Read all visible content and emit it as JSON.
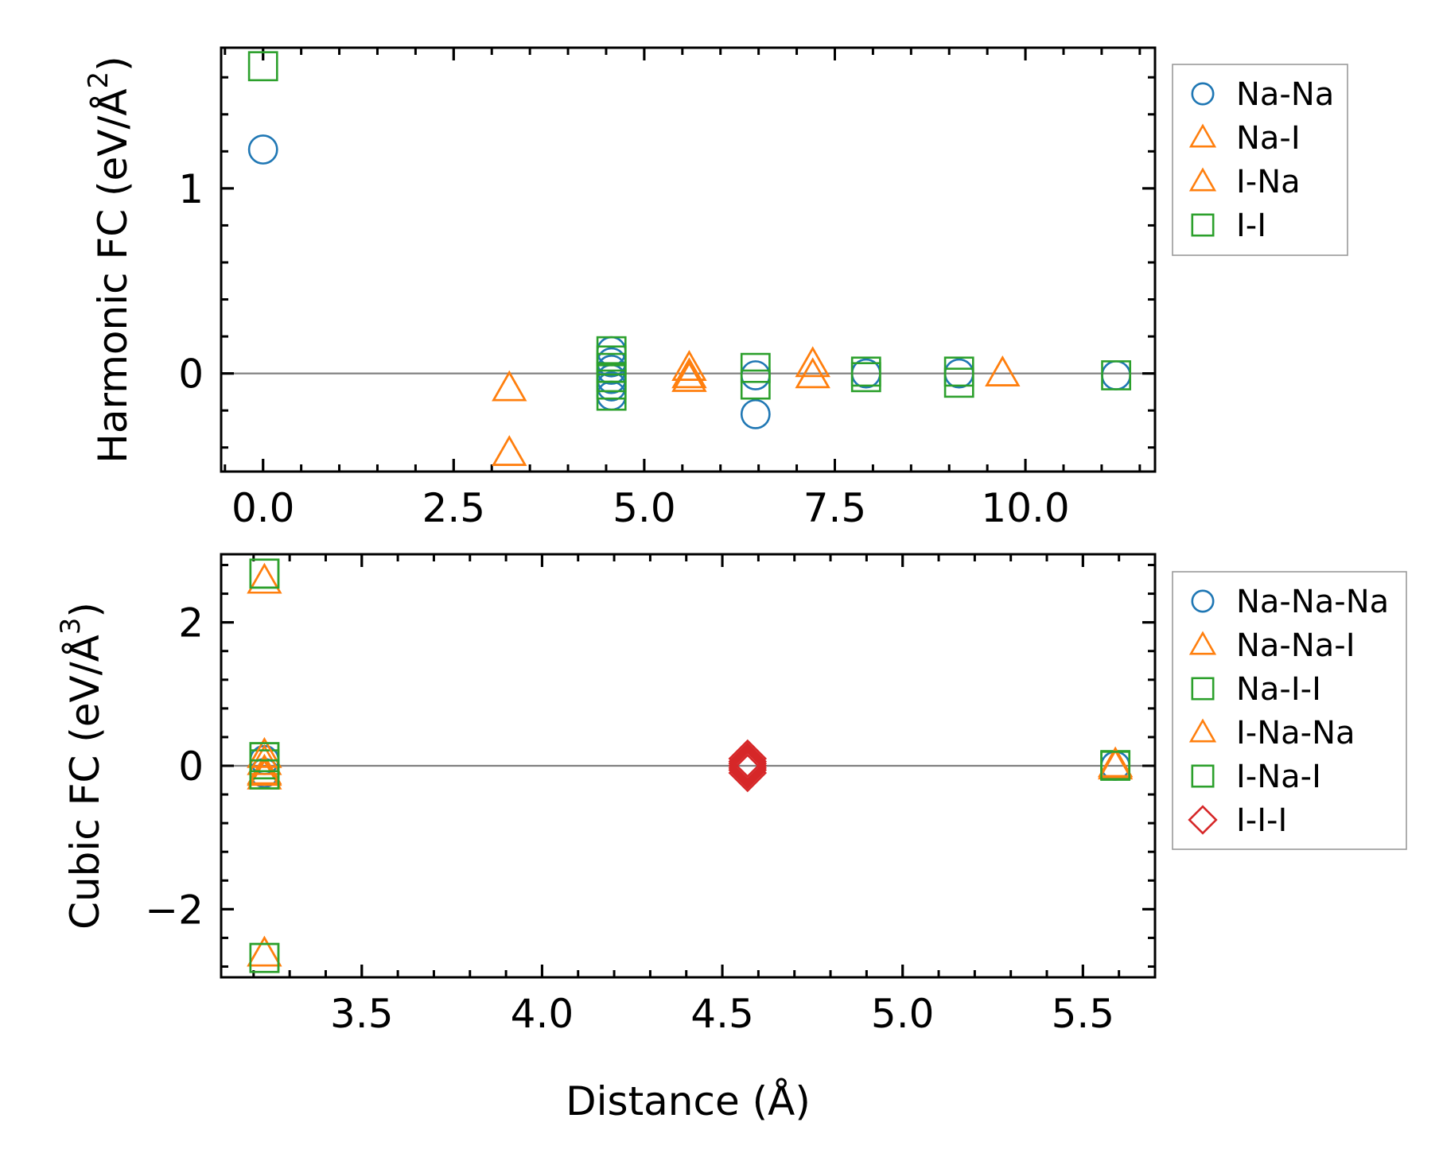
{
  "colors": {
    "blue": "#1f77b4",
    "orange": "#ff7f0e",
    "green": "#2ca02c",
    "red": "#d62728",
    "zero_line": "#808080"
  },
  "chart_data": [
    {
      "type": "scatter",
      "id": "harmonic",
      "ylabel": "Harmonic FC (eV/Å²)",
      "ylabel_parts": [
        "Harmonic FC (eV/Å",
        "2",
        ")"
      ],
      "xlabel": "",
      "xlim": [
        -0.55,
        11.7
      ],
      "ylim": [
        -0.53,
        1.76
      ],
      "xticks": [
        0.0,
        2.5,
        5.0,
        7.5,
        10.0
      ],
      "xtick_labels": [
        "0.0",
        "2.5",
        "5.0",
        "7.5",
        "10.0"
      ],
      "yticks": [
        0,
        1
      ],
      "ytick_labels": [
        "0",
        "1"
      ],
      "x_minor_step": 0.5,
      "y_minor_step": 0.2,
      "zero_line": true,
      "legend_position": "outside-right-top",
      "series": [
        {
          "name": "Na-Na",
          "marker": "circle",
          "color": "#1f77b4",
          "points": [
            [
              0.0,
              1.21
            ],
            [
              4.57,
              0.12
            ],
            [
              4.57,
              0.06
            ],
            [
              4.57,
              0.02
            ],
            [
              4.57,
              -0.03
            ],
            [
              4.57,
              -0.07
            ],
            [
              4.57,
              -0.12
            ],
            [
              6.46,
              -0.01
            ],
            [
              6.46,
              -0.22
            ],
            [
              7.91,
              0.0
            ],
            [
              9.13,
              0.0
            ],
            [
              11.19,
              -0.01
            ]
          ]
        },
        {
          "name": "Na-I",
          "marker": "triangle",
          "color": "#ff7f0e",
          "points": [
            [
              3.23,
              -0.08
            ],
            [
              3.23,
              -0.43
            ],
            [
              5.59,
              0.03
            ],
            [
              5.59,
              -0.01
            ],
            [
              5.59,
              -0.03
            ],
            [
              7.21,
              0.05
            ],
            [
              7.21,
              -0.01
            ],
            [
              9.7,
              0.0
            ]
          ]
        },
        {
          "name": "I-Na",
          "marker": "triangle",
          "color": "#ff7f0e",
          "points": [
            [
              3.23,
              -0.08
            ],
            [
              3.23,
              -0.43
            ],
            [
              5.59,
              0.03
            ],
            [
              5.59,
              -0.01
            ],
            [
              5.59,
              -0.03
            ],
            [
              7.21,
              0.05
            ],
            [
              7.21,
              -0.01
            ],
            [
              9.7,
              0.0
            ]
          ]
        },
        {
          "name": "I-I",
          "marker": "square",
          "color": "#2ca02c",
          "points": [
            [
              0.0,
              1.66
            ],
            [
              4.57,
              0.12
            ],
            [
              4.57,
              0.07
            ],
            [
              4.57,
              0.03
            ],
            [
              4.57,
              -0.02
            ],
            [
              4.57,
              -0.06
            ],
            [
              4.57,
              -0.12
            ],
            [
              6.46,
              0.03
            ],
            [
              6.46,
              -0.06
            ],
            [
              7.91,
              0.01
            ],
            [
              7.91,
              -0.02
            ],
            [
              9.13,
              0.01
            ],
            [
              9.13,
              -0.05
            ],
            [
              11.19,
              -0.01
            ]
          ]
        }
      ]
    },
    {
      "type": "scatter",
      "id": "cubic",
      "ylabel": "Cubic FC (eV/Å³)",
      "ylabel_parts": [
        "Cubic FC (eV/Å",
        "3",
        ")"
      ],
      "xlabel": "Distance (Å)",
      "xlim": [
        3.11,
        5.7
      ],
      "ylim": [
        -2.95,
        2.95
      ],
      "xticks": [
        3.5,
        4.0,
        4.5,
        5.0,
        5.5
      ],
      "xtick_labels": [
        "3.5",
        "4.0",
        "4.5",
        "5.0",
        "5.5"
      ],
      "yticks": [
        -2,
        0,
        2
      ],
      "ytick_labels": [
        "−2",
        "0",
        "2"
      ],
      "x_minor_step": 0.1,
      "y_minor_step": 0.4,
      "zero_line": true,
      "legend_position": "outside-right-top",
      "series": [
        {
          "name": "Na-Na-Na",
          "marker": "circle",
          "color": "#1f77b4",
          "points": [
            [
              3.23,
              0.08
            ],
            [
              3.23,
              -0.1
            ],
            [
              5.59,
              0.0
            ]
          ]
        },
        {
          "name": "Na-Na-I",
          "marker": "triangle",
          "color": "#ff7f0e",
          "points": [
            [
              3.23,
              2.58
            ],
            [
              3.23,
              -2.62
            ],
            [
              3.23,
              0.15
            ],
            [
              3.23,
              0.05
            ],
            [
              3.23,
              -0.08
            ],
            [
              3.23,
              -0.15
            ],
            [
              5.59,
              0.02
            ],
            [
              5.59,
              -0.01
            ]
          ]
        },
        {
          "name": "Na-I-I",
          "marker": "square",
          "color": "#2ca02c",
          "points": [
            [
              3.23,
              2.68
            ],
            [
              3.23,
              -2.68
            ],
            [
              3.23,
              0.12
            ],
            [
              3.23,
              0.02
            ],
            [
              3.23,
              -0.12
            ],
            [
              5.59,
              0.01
            ]
          ]
        },
        {
          "name": "I-Na-Na",
          "marker": "triangle",
          "color": "#ff7f0e",
          "points": [
            [
              3.23,
              2.58
            ],
            [
              3.23,
              -2.62
            ],
            [
              3.23,
              0.15
            ],
            [
              3.23,
              -0.1
            ],
            [
              5.59,
              0.02
            ]
          ]
        },
        {
          "name": "I-Na-I",
          "marker": "square",
          "color": "#2ca02c",
          "points": [
            [
              3.23,
              2.68
            ],
            [
              3.23,
              -2.68
            ],
            [
              3.23,
              0.12
            ],
            [
              3.23,
              -0.12
            ],
            [
              5.59,
              0.0
            ]
          ]
        },
        {
          "name": "I-I-I",
          "marker": "diamond",
          "color": "#d62728",
          "points": [
            [
              4.57,
              0.1
            ],
            [
              4.57,
              0.06
            ],
            [
              4.57,
              0.03
            ],
            [
              4.57,
              0.0
            ],
            [
              4.57,
              -0.03
            ],
            [
              4.57,
              -0.06
            ],
            [
              4.57,
              -0.1
            ]
          ]
        }
      ]
    }
  ]
}
